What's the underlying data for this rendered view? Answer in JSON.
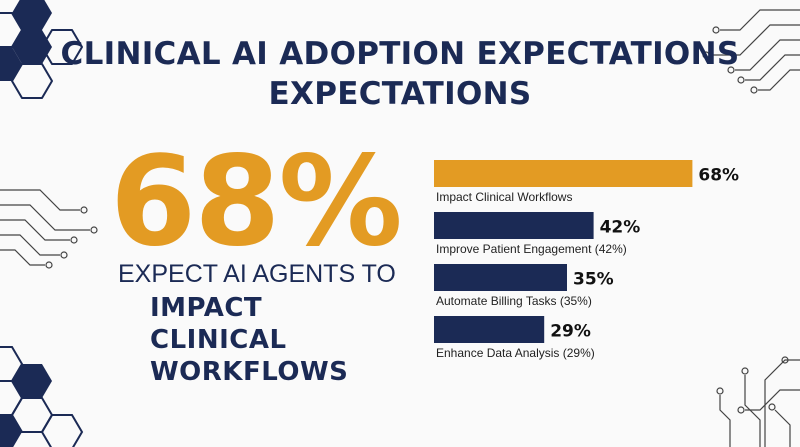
{
  "title_line1": "CLINICAL AI ADOPTION EXPECTATIONS",
  "title_line2": "EXPECTATIONS",
  "highlight": {
    "value": "68%",
    "caption": "EXPECT AI AGENTS TO",
    "emphasis": "IMPACT CLINICAL WORKFLOWS"
  },
  "colors": {
    "accent": "#e39b23",
    "navy": "#1b2a55"
  },
  "chart_data": {
    "type": "bar",
    "orientation": "horizontal",
    "categories": [
      "Impact Clinical Workflows",
      "Improve Patient Engagement (42%)",
      "Automate Billing Tasks (35%)",
      "Enhance Data Analysis (29%)"
    ],
    "values": [
      68,
      42,
      35,
      29
    ],
    "value_labels": [
      "68%",
      "42%",
      "35%",
      "29%"
    ],
    "bar_colors": [
      "#e39b23",
      "#1b2a55",
      "#1b2a55",
      "#1b2a55"
    ],
    "unit": "%",
    "xlim": [
      0,
      100
    ],
    "grid": false,
    "legend": "none"
  }
}
